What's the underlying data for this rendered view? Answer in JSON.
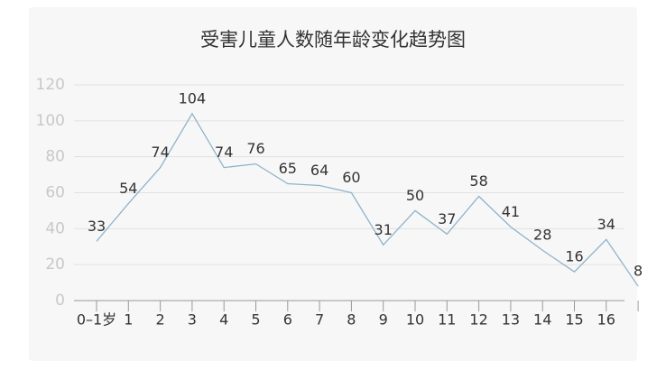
{
  "chart_data": {
    "type": "line",
    "title": "受害儿童人数随年龄变化趋势图",
    "categories": [
      "0–1岁",
      "1",
      "2",
      "3",
      "4",
      "5",
      "6",
      "7",
      "8",
      "9",
      "10",
      "11",
      "12",
      "13",
      "14",
      "15",
      "16",
      null
    ],
    "series": [
      {
        "name": null,
        "color": "#8fb4cc",
        "values": [
          33,
          54,
          74,
          104,
          74,
          76,
          65,
          64,
          60,
          31,
          50,
          37,
          58,
          41,
          28,
          16,
          34,
          8
        ]
      }
    ],
    "ylim": [
      0,
      120
    ],
    "yticks": [
      0,
      20,
      40,
      60,
      80,
      100,
      120
    ],
    "grid": true
  }
}
